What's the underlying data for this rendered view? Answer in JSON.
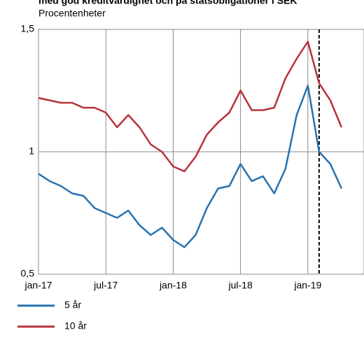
{
  "chart_data": {
    "type": "line",
    "title": "med god kreditvärdighet och på statsobligationer i SEK",
    "subtitle": "Procentenheter",
    "x": [
      "2017-01",
      "2017-02",
      "2017-03",
      "2017-04",
      "2017-05",
      "2017-06",
      "2017-07",
      "2017-08",
      "2017-09",
      "2017-10",
      "2017-11",
      "2017-12",
      "2018-01",
      "2018-02",
      "2018-03",
      "2018-04",
      "2018-05",
      "2018-06",
      "2018-07",
      "2018-08",
      "2018-09",
      "2018-10",
      "2018-11",
      "2018-12",
      "2019-01",
      "2019-02",
      "2019-03",
      "2019-04"
    ],
    "series": [
      {
        "name": "5 år",
        "color": "#2672b0",
        "values": [
          0.91,
          0.88,
          0.86,
          0.83,
          0.82,
          0.77,
          0.75,
          0.73,
          0.76,
          0.7,
          0.66,
          0.69,
          0.64,
          0.61,
          0.66,
          0.77,
          0.85,
          0.86,
          0.95,
          0.88,
          0.9,
          0.83,
          0.93,
          1.15,
          1.27,
          1.0,
          0.95,
          0.85
        ]
      },
      {
        "name": "10 år",
        "color": "#b8323a",
        "values": [
          1.22,
          1.21,
          1.2,
          1.2,
          1.18,
          1.18,
          1.16,
          1.1,
          1.15,
          1.1,
          1.03,
          1.0,
          0.94,
          0.92,
          0.98,
          1.07,
          1.12,
          1.16,
          1.25,
          1.17,
          1.17,
          1.18,
          1.3,
          1.38,
          1.45,
          1.28,
          1.21,
          1.1
        ]
      }
    ],
    "xlim": [
      "2017-01",
      "2019-06"
    ],
    "xticks": [
      {
        "value": "2017-01",
        "label": "jan-17"
      },
      {
        "value": "2017-07",
        "label": "jul-17"
      },
      {
        "value": "2018-01",
        "label": "jan-18"
      },
      {
        "value": "2018-07",
        "label": "jul-18"
      },
      {
        "value": "2019-01",
        "label": "jan-19"
      }
    ],
    "ylim": [
      0.5,
      1.5
    ],
    "yticks": [
      {
        "value": 0.5,
        "label": "0,5"
      },
      {
        "value": 1,
        "label": "1"
      },
      {
        "value": 1.5,
        "label": "1,5"
      }
    ],
    "vline": "2019-02",
    "grid": true,
    "legend": "bottom-left"
  }
}
